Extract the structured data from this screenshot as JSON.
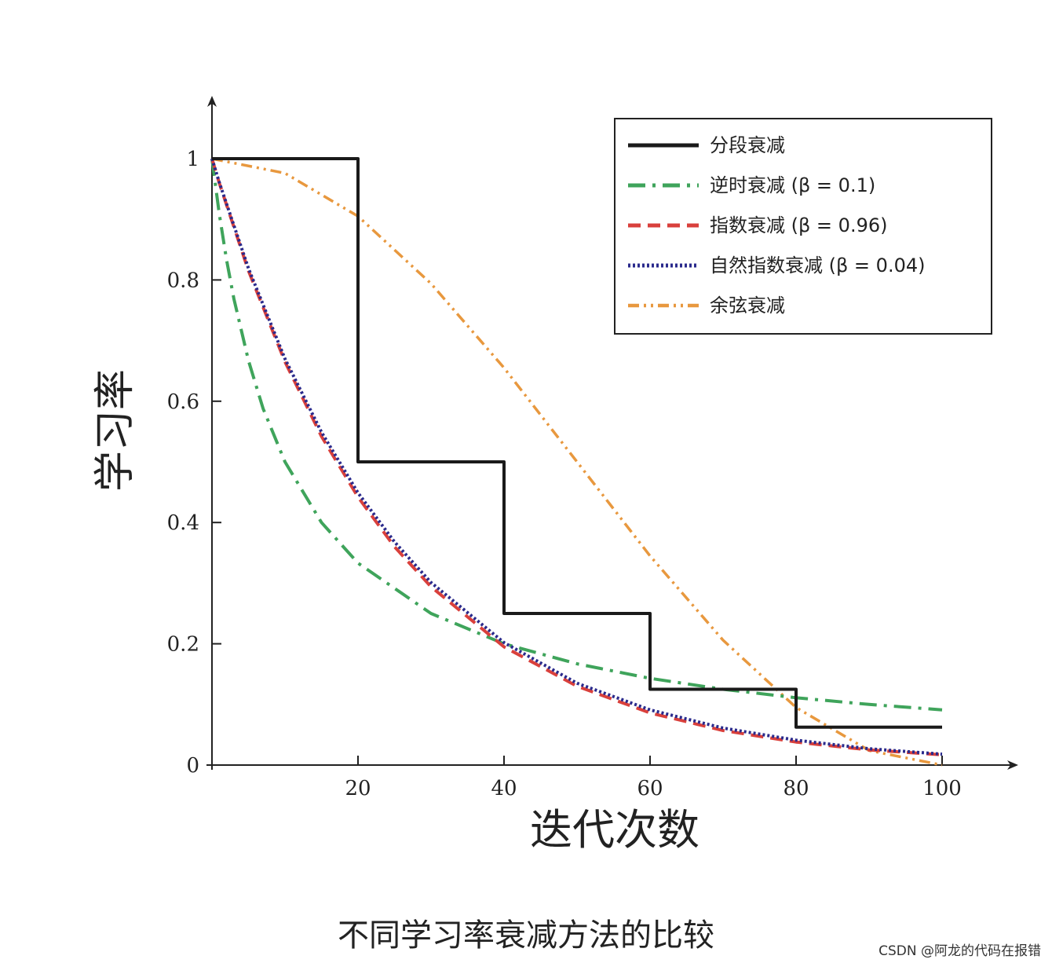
{
  "chart_data": {
    "type": "line",
    "xlabel": "迭代次数",
    "ylabel": "学习率",
    "xlim": [
      0,
      100
    ],
    "ylim": [
      0,
      1
    ],
    "x_ticks": [
      20,
      40,
      60,
      80,
      100
    ],
    "x_tick_labels": [
      "20",
      "40",
      "60",
      "80",
      "100"
    ],
    "y_ticks": [
      0,
      0.2,
      0.4,
      0.6,
      0.8,
      1
    ],
    "y_tick_labels": [
      "0",
      "0.2",
      "0.4",
      "0.6",
      "0.8",
      "1"
    ],
    "grid": false,
    "legend_position": "top-right",
    "series": [
      {
        "name": "分段衰减",
        "style": "solid",
        "color": "#1a1a1a",
        "x": [
          0,
          20,
          20,
          40,
          40,
          60,
          60,
          80,
          80,
          100
        ],
        "y": [
          1,
          1,
          0.5,
          0.5,
          0.25,
          0.25,
          0.125,
          0.125,
          0.0625,
          0.0625
        ]
      },
      {
        "name": "逆时衰减 (β = 0.1)",
        "style": "dashdot",
        "color": "#3fa45b",
        "x": [
          0,
          1,
          2,
          3,
          5,
          7,
          10,
          15,
          20,
          30,
          40,
          50,
          60,
          70,
          80,
          90,
          100
        ],
        "y": [
          1,
          0.909,
          0.833,
          0.769,
          0.667,
          0.588,
          0.5,
          0.4,
          0.333,
          0.25,
          0.2,
          0.167,
          0.143,
          0.125,
          0.111,
          0.1,
          0.091
        ]
      },
      {
        "name": "指数衰减 (β = 0.96)",
        "style": "dashed",
        "color": "#d9403c",
        "x": [
          0,
          1,
          5,
          10,
          15,
          20,
          25,
          30,
          40,
          50,
          60,
          70,
          80,
          90,
          100
        ],
        "y": [
          1,
          0.96,
          0.815,
          0.665,
          0.542,
          0.442,
          0.36,
          0.294,
          0.195,
          0.13,
          0.086,
          0.057,
          0.038,
          0.025,
          0.017
        ]
      },
      {
        "name": "自然指数衰减 (β = 0.04)",
        "style": "dotted",
        "color": "#2a2a8c",
        "x": [
          0,
          1,
          5,
          10,
          15,
          20,
          25,
          30,
          40,
          50,
          60,
          70,
          80,
          90,
          100
        ],
        "y": [
          1,
          0.961,
          0.819,
          0.67,
          0.549,
          0.449,
          0.368,
          0.301,
          0.202,
          0.135,
          0.091,
          0.061,
          0.041,
          0.027,
          0.018
        ]
      },
      {
        "name": "余弦衰减",
        "style": "dashdotdot",
        "color": "#e8983e",
        "x": [
          0,
          10,
          20,
          30,
          40,
          50,
          60,
          70,
          80,
          90,
          100
        ],
        "y": [
          1,
          0.976,
          0.905,
          0.794,
          0.655,
          0.5,
          0.345,
          0.206,
          0.095,
          0.024,
          0
        ]
      }
    ]
  },
  "caption": "不同学习率衰减方法的比较",
  "watermark": "CSDN @阿龙的代码在报错"
}
